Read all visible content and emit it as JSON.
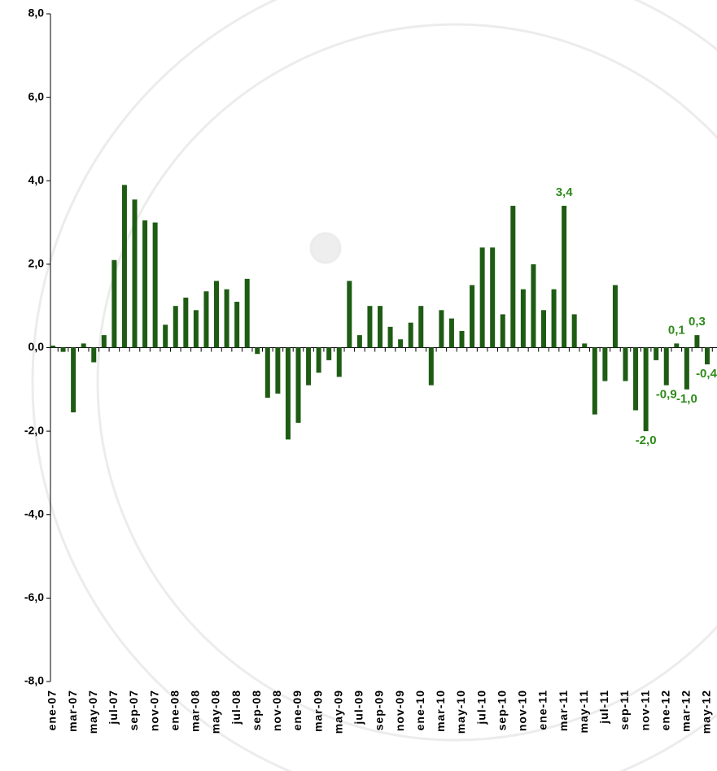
{
  "chart_data": {
    "type": "bar",
    "color": "#1e5c14",
    "label_color": "#2e8b1a",
    "categories": [
      "ene-07",
      null,
      "mar-07",
      null,
      "may-07",
      null,
      "jul-07",
      null,
      "sep-07",
      null,
      "nov-07",
      null,
      "ene-08",
      null,
      "mar-08",
      null,
      "may-08",
      null,
      "jul-08",
      null,
      "sep-08",
      null,
      "nov-08",
      null,
      "ene-09",
      null,
      "mar-09",
      null,
      "may-09",
      null,
      "jul-09",
      null,
      "sep-09",
      null,
      "nov-09",
      null,
      "ene-10",
      null,
      "mar-10",
      null,
      "may-10",
      null,
      "jul-10",
      null,
      "sep-10",
      null,
      "nov-10",
      null,
      "ene-11",
      null,
      "mar-11",
      null,
      "may-11",
      null,
      "jul-11",
      null,
      "sep-11",
      null,
      "nov-11",
      null,
      "ene-12",
      null,
      "mar-12",
      null,
      "may-12"
    ],
    "values": [
      0.05,
      -0.1,
      -1.55,
      0.1,
      -0.35,
      0.3,
      2.1,
      3.9,
      3.55,
      3.05,
      3.0,
      0.55,
      1.0,
      1.2,
      0.9,
      1.35,
      1.6,
      1.4,
      1.1,
      1.65,
      -0.15,
      -1.2,
      -1.1,
      -2.2,
      -1.8,
      -0.9,
      -0.6,
      -0.3,
      -0.7,
      1.6,
      0.3,
      1.0,
      1.0,
      0.5,
      0.2,
      0.6,
      1.0,
      -0.9,
      0.9,
      0.7,
      0.4,
      1.5,
      2.4,
      2.4,
      0.8,
      3.4,
      1.4,
      2.0,
      0.9,
      1.4,
      3.4,
      0.8,
      0.1,
      -1.6,
      -0.8,
      1.5,
      -0.8,
      -1.5,
      -2.0,
      -0.3,
      -0.9,
      0.1,
      -1.0,
      0.3,
      -0.4
    ],
    "value_labels": [
      null,
      null,
      null,
      null,
      null,
      null,
      null,
      null,
      null,
      null,
      null,
      null,
      null,
      null,
      null,
      null,
      null,
      null,
      null,
      null,
      null,
      null,
      null,
      null,
      null,
      null,
      null,
      null,
      null,
      null,
      null,
      null,
      null,
      null,
      null,
      null,
      null,
      null,
      null,
      null,
      null,
      null,
      null,
      null,
      null,
      null,
      null,
      null,
      null,
      null,
      "3,4",
      null,
      null,
      null,
      null,
      null,
      null,
      null,
      "-2,0",
      null,
      "-0,9",
      "0,1",
      "-1,0",
      "0,3",
      "-0,4"
    ],
    "ylim": [
      -8,
      8
    ],
    "yticks": [
      {
        "value": -8,
        "label": "-8,0"
      },
      {
        "value": -6,
        "label": "-6,0"
      },
      {
        "value": -4,
        "label": "-4,0"
      },
      {
        "value": -2,
        "label": "-2,0"
      },
      {
        "value": 0,
        "label": "0,0"
      },
      {
        "value": 2,
        "label": "2,0"
      },
      {
        "value": 4,
        "label": "4,0"
      },
      {
        "value": 6,
        "label": "6,0"
      },
      {
        "value": 8,
        "label": "8,0"
      }
    ]
  }
}
